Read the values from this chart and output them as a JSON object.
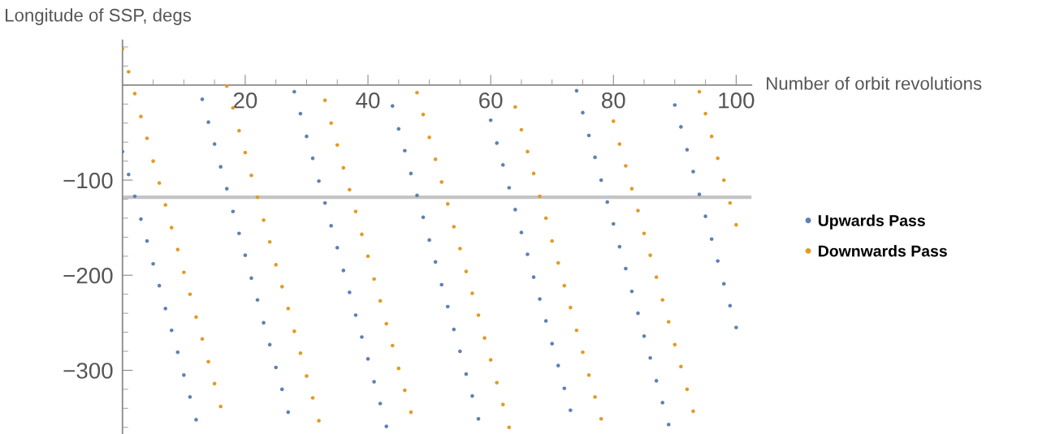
{
  "chart_data": {
    "type": "scatter",
    "xlabel": "Number of orbit revolutions",
    "ylabel": "Longitude of SSP, degs",
    "x": [
      0,
      1,
      2,
      3,
      4,
      5,
      6,
      7,
      8,
      9,
      10,
      11,
      12,
      13,
      14,
      15,
      16,
      17,
      18,
      19,
      20,
      21,
      22,
      23,
      24,
      25,
      26,
      27,
      28,
      29,
      30,
      31,
      32,
      33,
      34,
      35,
      36,
      37,
      38,
      39,
      40,
      41,
      42,
      43,
      44,
      45,
      46,
      47,
      48,
      49,
      50,
      51,
      52,
      53,
      54,
      55,
      56,
      57,
      58,
      59,
      60,
      61,
      62,
      63,
      64,
      65,
      66,
      67,
      68,
      69,
      70,
      71,
      72,
      73,
      74,
      75,
      76,
      77,
      78,
      79,
      80,
      81,
      82,
      83,
      84,
      85,
      86,
      87,
      88,
      89,
      90,
      91,
      92,
      93,
      94,
      95,
      96,
      97,
      98,
      99,
      100
    ],
    "series": [
      {
        "name": "Upwards Pass",
        "color": "#5e81b5",
        "values": [
          -70,
          -94,
          -117,
          -141,
          -164,
          -188,
          -211,
          -235,
          -258,
          -281,
          -305,
          -328,
          -352,
          -15,
          -39,
          -62,
          -86,
          -109,
          -133,
          -156,
          -179,
          -203,
          -226,
          -250,
          -273,
          -297,
          -320,
          -344,
          -7,
          -30,
          -54,
          -77,
          -101,
          -124,
          -148,
          -171,
          -195,
          -218,
          -242,
          -265,
          -288,
          -312,
          -335,
          -359,
          -22,
          -46,
          -69,
          -93,
          -116,
          -139,
          -163,
          -186,
          -210,
          -233,
          -257,
          -280,
          -304,
          -327,
          -351,
          null,
          -37,
          -61,
          -84,
          -108,
          -131,
          -155,
          -178,
          -202,
          -225,
          -248,
          -272,
          -295,
          -319,
          -342,
          -6,
          -29,
          -53,
          -76,
          -100,
          -123,
          -146,
          -170,
          -193,
          -217,
          -240,
          -264,
          -287,
          -311,
          -334,
          -357,
          -21,
          -44,
          -68,
          -91,
          -115,
          -138,
          -162,
          -185,
          -209,
          -232,
          -255
        ]
      },
      {
        "name": "Downwards Pass",
        "color": "#e19c24",
        "values": [
          38,
          14,
          -9,
          -33,
          -56,
          -80,
          -103,
          -126,
          -150,
          -173,
          -197,
          -220,
          -244,
          -267,
          -291,
          -314,
          -338,
          -1,
          -24,
          -48,
          -71,
          -95,
          -118,
          -142,
          -165,
          -189,
          -212,
          -235,
          -259,
          -282,
          -306,
          -329,
          -353,
          -16,
          -40,
          -63,
          -87,
          -110,
          -133,
          -157,
          -180,
          -204,
          -227,
          -251,
          -274,
          -298,
          -321,
          -344,
          -8,
          -31,
          -55,
          -78,
          -102,
          -125,
          -149,
          -172,
          -196,
          -219,
          -242,
          -266,
          -289,
          -313,
          -336,
          -360,
          -23,
          -47,
          -70,
          -93,
          -117,
          -140,
          -164,
          -187,
          -211,
          -234,
          -258,
          -281,
          -305,
          -328,
          -351,
          null,
          -38,
          -62,
          -85,
          -109,
          -132,
          -156,
          -179,
          -202,
          -226,
          -249,
          -273,
          -296,
          -320,
          -343,
          -7,
          -30,
          -54,
          -77,
          -100,
          -124,
          -147
        ]
      }
    ],
    "xlim": [
      0,
      102.5
    ],
    "ylim": [
      -367,
      47
    ],
    "xticks": [
      20,
      40,
      60,
      80,
      100
    ],
    "yticks": [
      {
        "value": -100,
        "label": "−100"
      },
      {
        "value": -200,
        "label": "−200"
      },
      {
        "value": -300,
        "label": "−300"
      }
    ],
    "ref_lines": [
      {
        "axis": "y",
        "value": -118,
        "color": "#c4c4c4"
      }
    ],
    "marker": "circle",
    "legend": "right",
    "grid": false
  }
}
